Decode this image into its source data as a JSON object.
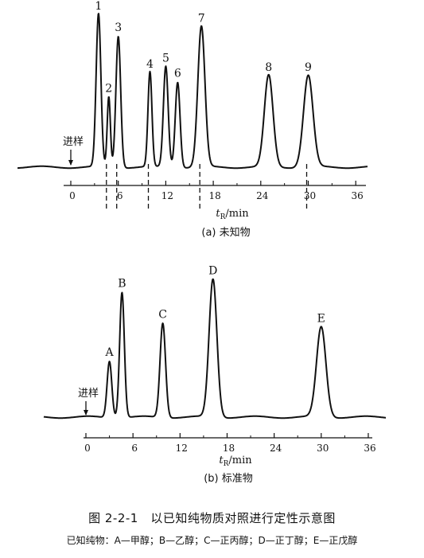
{
  "chart_data": [
    {
      "type": "line",
      "panel_label": "(a) 未知物",
      "xlabel": "t_R/min",
      "x_ticks": [
        0,
        6,
        12,
        18,
        24,
        30,
        36
      ],
      "xlim": [
        0,
        36
      ],
      "injection_label": "进样",
      "injection_time": 0,
      "peaks": [
        {
          "label": "1",
          "t": 3.5,
          "height": 1.0,
          "width": 0.3
        },
        {
          "label": "2",
          "t": 4.8,
          "height": 0.46,
          "width": 0.2
        },
        {
          "label": "3",
          "t": 6.0,
          "height": 0.86,
          "width": 0.3
        },
        {
          "label": "4",
          "t": 10.0,
          "height": 0.62,
          "width": 0.25
        },
        {
          "label": "5",
          "t": 12.0,
          "height": 0.66,
          "width": 0.3
        },
        {
          "label": "6",
          "t": 13.5,
          "height": 0.56,
          "width": 0.3
        },
        {
          "label": "7",
          "t": 16.5,
          "height": 0.92,
          "width": 0.45
        },
        {
          "label": "8",
          "t": 25.0,
          "height": 0.6,
          "width": 0.55
        },
        {
          "label": "9",
          "t": 30.0,
          "height": 0.6,
          "width": 0.6
        }
      ],
      "marked_times": [
        4.5,
        5.8,
        9.8,
        16.3,
        29.8
      ]
    },
    {
      "type": "line",
      "panel_label": "(b) 标准物",
      "xlabel": "t_R/min",
      "x_ticks": [
        0,
        6,
        12,
        18,
        24,
        30,
        36
      ],
      "xlim": [
        0,
        36
      ],
      "injection_label": "进样",
      "injection_time": 0,
      "peaks": [
        {
          "label": "A",
          "t": 3.0,
          "height": 0.4,
          "width": 0.3
        },
        {
          "label": "B",
          "t": 4.6,
          "height": 0.89,
          "width": 0.3
        },
        {
          "label": "C",
          "t": 9.8,
          "height": 0.67,
          "width": 0.35
        },
        {
          "label": "D",
          "t": 16.2,
          "height": 0.98,
          "width": 0.5
        },
        {
          "label": "E",
          "t": 30.0,
          "height": 0.64,
          "width": 0.6
        }
      ]
    }
  ],
  "figure_title": "图 2-2-1　以已知纯物质对照进行定性示意图",
  "figure_note": "已知纯物：A—甲醇；B—乙醇；C—正丙醇；D—正丁醇；E—正戊醇"
}
